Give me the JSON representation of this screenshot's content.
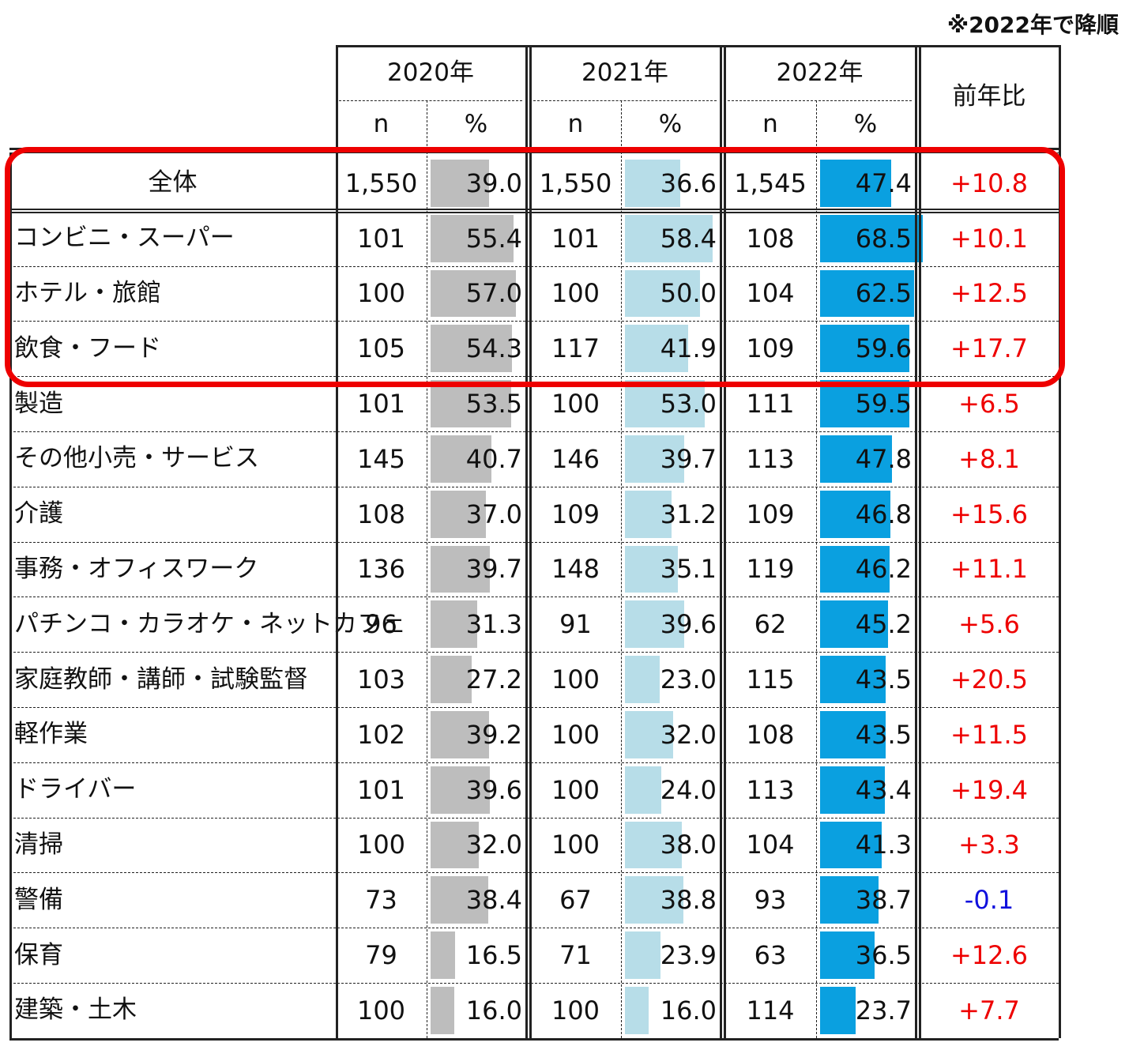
{
  "note": "※2022年で降順",
  "chart_data": {
    "type": "table",
    "years": [
      "2020年",
      "2021年",
      "2022年"
    ],
    "subheaders": {
      "n": "n",
      "pct": "%"
    },
    "diff_header": "前年比",
    "bar_colors": [
      "#bdbdbd",
      "#b7dde8",
      "#0aa0e0"
    ],
    "diff_colors": {
      "positive": "#ee0000",
      "negative": "#1010dd"
    },
    "highlighted_rows": [
      "全体",
      "コンビニ・スーパー",
      "ホテル・旅館",
      "飲食・フード"
    ],
    "rows": [
      {
        "label": "全体",
        "n2020": "1,550",
        "p2020": "39.0",
        "n2021": "1,550",
        "p2021": "36.6",
        "n2022": "1,545",
        "p2022": "47.4",
        "diff": "+10.8"
      },
      {
        "label": "コンビニ・スーパー",
        "n2020": "101",
        "p2020": "55.4",
        "n2021": "101",
        "p2021": "58.4",
        "n2022": "108",
        "p2022": "68.5",
        "diff": "+10.1"
      },
      {
        "label": "ホテル・旅館",
        "n2020": "100",
        "p2020": "57.0",
        "n2021": "100",
        "p2021": "50.0",
        "n2022": "104",
        "p2022": "62.5",
        "diff": "+12.5"
      },
      {
        "label": "飲食・フード",
        "n2020": "105",
        "p2020": "54.3",
        "n2021": "117",
        "p2021": "41.9",
        "n2022": "109",
        "p2022": "59.6",
        "diff": "+17.7"
      },
      {
        "label": "製造",
        "n2020": "101",
        "p2020": "53.5",
        "n2021": "100",
        "p2021": "53.0",
        "n2022": "111",
        "p2022": "59.5",
        "diff": "+6.5"
      },
      {
        "label": "その他小売・サービス",
        "n2020": "145",
        "p2020": "40.7",
        "n2021": "146",
        "p2021": "39.7",
        "n2022": "113",
        "p2022": "47.8",
        "diff": "+8.1"
      },
      {
        "label": "介護",
        "n2020": "108",
        "p2020": "37.0",
        "n2021": "109",
        "p2021": "31.2",
        "n2022": "109",
        "p2022": "46.8",
        "diff": "+15.6"
      },
      {
        "label": "事務・オフィスワーク",
        "n2020": "136",
        "p2020": "39.7",
        "n2021": "148",
        "p2021": "35.1",
        "n2022": "119",
        "p2022": "46.2",
        "diff": "+11.1"
      },
      {
        "label": "パチンコ・カラオケ・ネットカフェ",
        "n2020": "96",
        "p2020": "31.3",
        "n2021": "91",
        "p2021": "39.6",
        "n2022": "62",
        "p2022": "45.2",
        "diff": "+5.6"
      },
      {
        "label": "家庭教師・講師・試験監督",
        "n2020": "103",
        "p2020": "27.2",
        "n2021": "100",
        "p2021": "23.0",
        "n2022": "115",
        "p2022": "43.5",
        "diff": "+20.5"
      },
      {
        "label": "軽作業",
        "n2020": "102",
        "p2020": "39.2",
        "n2021": "100",
        "p2021": "32.0",
        "n2022": "108",
        "p2022": "43.5",
        "diff": "+11.5"
      },
      {
        "label": "ドライバー",
        "n2020": "101",
        "p2020": "39.6",
        "n2021": "100",
        "p2021": "24.0",
        "n2022": "113",
        "p2022": "43.4",
        "diff": "+19.4"
      },
      {
        "label": "清掃",
        "n2020": "100",
        "p2020": "32.0",
        "n2021": "100",
        "p2021": "38.0",
        "n2022": "104",
        "p2022": "41.3",
        "diff": "+3.3"
      },
      {
        "label": "警備",
        "n2020": "73",
        "p2020": "38.4",
        "n2021": "67",
        "p2021": "38.8",
        "n2022": "93",
        "p2022": "38.7",
        "diff": "-0.1"
      },
      {
        "label": "保育",
        "n2020": "79",
        "p2020": "16.5",
        "n2021": "71",
        "p2021": "23.9",
        "n2022": "63",
        "p2022": "36.5",
        "diff": "+12.6"
      },
      {
        "label": "建築・土木",
        "n2020": "100",
        "p2020": "16.0",
        "n2021": "100",
        "p2021": "16.0",
        "n2022": "114",
        "p2022": "23.7",
        "diff": "+7.7"
      }
    ]
  }
}
